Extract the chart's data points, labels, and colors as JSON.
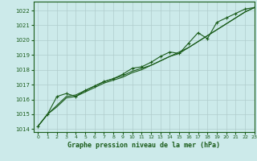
{
  "title": "Graphe pression niveau de la mer (hPa)",
  "bg_color": "#cceaea",
  "grid_color": "#b0cccc",
  "line_color": "#1a5c1a",
  "xlim": [
    -0.5,
    23
  ],
  "ylim": [
    1013.8,
    1022.6
  ],
  "yticks": [
    1014,
    1015,
    1016,
    1017,
    1018,
    1019,
    1020,
    1021,
    1022
  ],
  "xticks": [
    0,
    1,
    2,
    3,
    4,
    5,
    6,
    7,
    8,
    9,
    10,
    11,
    12,
    13,
    14,
    15,
    16,
    17,
    18,
    19,
    20,
    21,
    22,
    23
  ],
  "line1_y": [
    1014.2,
    1015.0,
    1015.6,
    1016.2,
    1016.3,
    1016.6,
    1016.9,
    1017.2,
    1017.4,
    1017.6,
    1017.9,
    1018.1,
    1018.3,
    1018.6,
    1018.9,
    1019.2,
    1019.5,
    1019.9,
    1020.3,
    1020.7,
    1021.1,
    1021.5,
    1021.9,
    1022.2
  ],
  "line2_y": [
    1014.2,
    1015.0,
    1016.2,
    1016.4,
    1016.2,
    1016.6,
    1016.9,
    1017.2,
    1017.4,
    1017.7,
    1018.1,
    1018.2,
    1018.5,
    1018.9,
    1019.2,
    1019.1,
    1019.8,
    1020.5,
    1020.1,
    1021.2,
    1021.5,
    1021.8,
    1022.1,
    1022.2
  ],
  "line3_y": [
    1014.2,
    1015.0,
    1015.5,
    1016.1,
    1016.2,
    1016.5,
    1016.8,
    1017.1,
    1017.3,
    1017.5,
    1017.8,
    1018.0,
    1018.3,
    1018.6,
    1018.9,
    1019.1,
    1019.5,
    1019.9,
    1020.3,
    1020.7,
    1021.1,
    1021.5,
    1021.9,
    1022.2
  ],
  "xlabel_fontsize": 6,
  "ytick_fontsize": 5,
  "xtick_fontsize": 4.5
}
